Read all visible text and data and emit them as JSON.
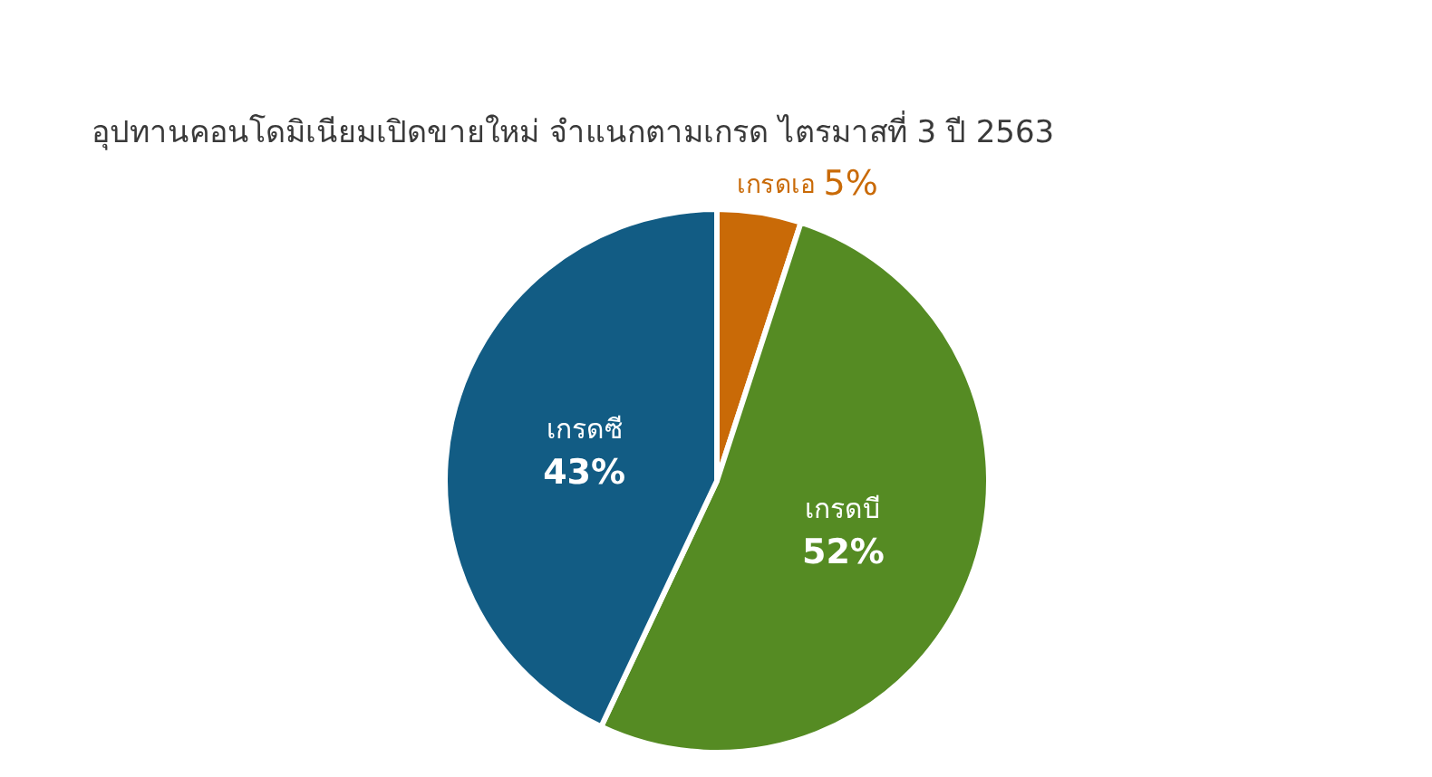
{
  "chart_data": {
    "type": "pie",
    "title": "อุปทานคอนโดมิเนียมเปิดขายใหม่ จำแนกตามเกรด ไตรมาสที่ 3 ปี 2563",
    "categories": [
      "เกรดเอ",
      "เกรดบี",
      "เกรดซี"
    ],
    "values": [
      5,
      52,
      43
    ],
    "colors": [
      "#c96a07",
      "#558b23",
      "#125c84"
    ],
    "value_labels": [
      "5%",
      "52%",
      "43%"
    ]
  }
}
